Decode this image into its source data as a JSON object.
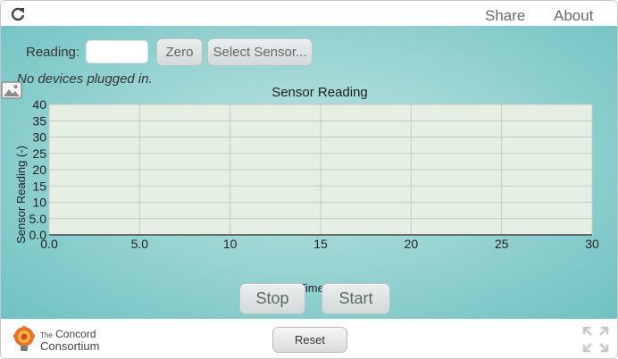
{
  "topbar": {
    "reload_icon": "reload-icon",
    "share_label": "Share",
    "about_label": "About"
  },
  "controls": {
    "reading_label": "Reading:",
    "reading_value": "",
    "zero_label": "Zero",
    "select_sensor_label": "Select Sensor...",
    "status_text": "No devices plugged in."
  },
  "chart_data": {
    "type": "line",
    "title": "Sensor Reading",
    "xlabel": "Time (s)",
    "ylabel": "Sensor Reading (-)",
    "xlim": [
      0,
      30
    ],
    "ylim": [
      0,
      40
    ],
    "x_ticks": [
      "0.0",
      "5.0",
      "10",
      "15",
      "20",
      "25",
      "30"
    ],
    "y_ticks": [
      "0.0",
      "5.0",
      "10",
      "15",
      "20",
      "25",
      "30",
      "35",
      "40"
    ],
    "grid": true,
    "series": []
  },
  "buttons": {
    "stop_label": "Stop",
    "start_label": "Start",
    "reset_label": "Reset"
  },
  "footer": {
    "logo_the": "The",
    "logo_line1": "Concord",
    "logo_line2": "Consortium"
  },
  "colors": {
    "plot_background": "#e6efe3",
    "grid": "#c3cdbf",
    "stage": "#9fd7d5"
  }
}
